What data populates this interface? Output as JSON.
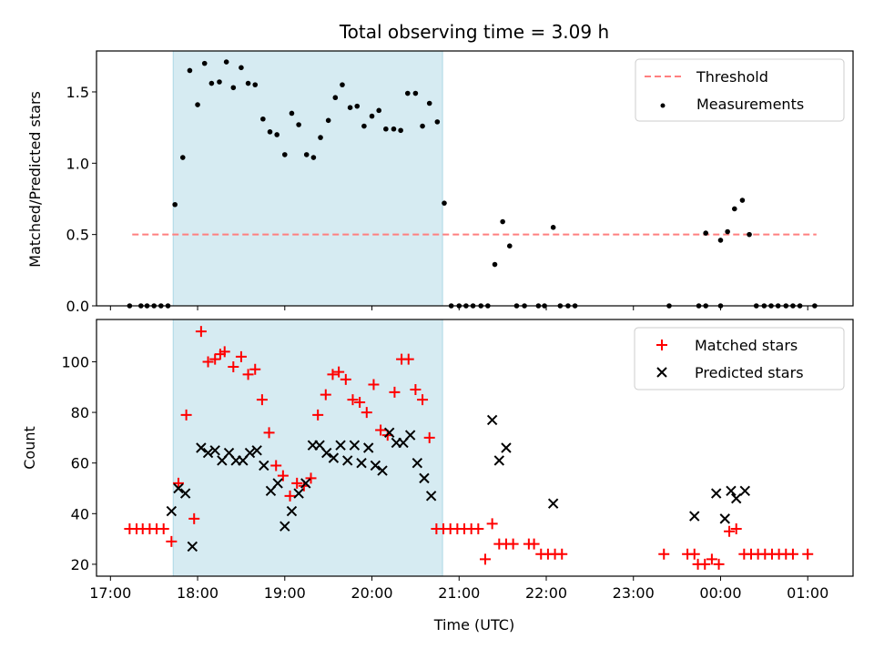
{
  "chart_data": [
    {
      "type": "scatter",
      "title": "Total observing time = 3.09 h",
      "ylabel": "Matched/Predicted stars",
      "xlabel": "",
      "ylim": [
        0,
        1.787
      ],
      "xlim": [
        16.84,
        25.52
      ],
      "yticks": [
        0,
        0.5,
        1.0,
        1.5
      ],
      "ytick_labels": [
        "0.0",
        "0.5",
        "1.0",
        "1.5"
      ],
      "shaded_region": [
        17.72,
        20.81
      ],
      "threshold": {
        "value": 0.5,
        "x_range": [
          17.25,
          25.1
        ],
        "color": "#ff7f7f",
        "label": "Threshold"
      },
      "legend": {
        "position": "top-right",
        "entries": [
          "Threshold",
          "Measurements"
        ]
      },
      "series": [
        {
          "name": "Measurements",
          "color": "#000000",
          "points": [
            [
              17.22,
              0
            ],
            [
              17.35,
              0
            ],
            [
              17.42,
              0
            ],
            [
              17.5,
              0
            ],
            [
              17.58,
              0
            ],
            [
              17.66,
              0
            ],
            [
              17.74,
              0.71
            ],
            [
              17.83,
              1.04
            ],
            [
              17.91,
              1.65
            ],
            [
              18.0,
              1.41
            ],
            [
              18.08,
              1.7
            ],
            [
              18.16,
              1.56
            ],
            [
              18.25,
              1.57
            ],
            [
              18.33,
              1.71
            ],
            [
              18.41,
              1.53
            ],
            [
              18.5,
              1.67
            ],
            [
              18.58,
              1.56
            ],
            [
              18.66,
              1.55
            ],
            [
              18.75,
              1.31
            ],
            [
              18.83,
              1.22
            ],
            [
              18.91,
              1.2
            ],
            [
              19.0,
              1.06
            ],
            [
              19.08,
              1.35
            ],
            [
              19.16,
              1.27
            ],
            [
              19.25,
              1.06
            ],
            [
              19.33,
              1.04
            ],
            [
              19.41,
              1.18
            ],
            [
              19.5,
              1.3
            ],
            [
              19.58,
              1.46
            ],
            [
              19.66,
              1.55
            ],
            [
              19.75,
              1.39
            ],
            [
              19.83,
              1.4
            ],
            [
              19.91,
              1.26
            ],
            [
              20.0,
              1.33
            ],
            [
              20.08,
              1.37
            ],
            [
              20.16,
              1.24
            ],
            [
              20.25,
              1.24
            ],
            [
              20.33,
              1.23
            ],
            [
              20.41,
              1.49
            ],
            [
              20.5,
              1.49
            ],
            [
              20.58,
              1.26
            ],
            [
              20.66,
              1.42
            ],
            [
              20.75,
              1.29
            ],
            [
              20.83,
              0.72
            ],
            [
              20.91,
              0
            ],
            [
              21.0,
              0
            ],
            [
              21.08,
              0
            ],
            [
              21.16,
              0
            ],
            [
              21.25,
              0
            ],
            [
              21.33,
              0
            ],
            [
              21.41,
              0.29
            ],
            [
              21.5,
              0.59
            ],
            [
              21.58,
              0.42
            ],
            [
              21.66,
              0
            ],
            [
              21.75,
              0
            ],
            [
              21.91,
              0
            ],
            [
              21.98,
              0
            ],
            [
              22.08,
              0.55
            ],
            [
              22.16,
              0
            ],
            [
              22.25,
              0
            ],
            [
              22.33,
              0
            ],
            [
              23.41,
              0
            ],
            [
              23.75,
              0
            ],
            [
              23.83,
              0
            ],
            [
              23.83,
              0.51
            ],
            [
              24.0,
              0
            ],
            [
              24.0,
              0.46
            ],
            [
              24.08,
              0.52
            ],
            [
              24.16,
              0.68
            ],
            [
              24.25,
              0.74
            ],
            [
              24.33,
              0.5
            ],
            [
              24.41,
              0
            ],
            [
              24.5,
              0
            ],
            [
              24.58,
              0
            ],
            [
              24.66,
              0
            ],
            [
              24.75,
              0
            ],
            [
              24.83,
              0
            ],
            [
              24.91,
              0
            ],
            [
              25.08,
              0
            ]
          ]
        }
      ]
    },
    {
      "type": "scatter",
      "title": "",
      "ylabel": "Count",
      "xlabel": "Time (UTC)",
      "ylim": [
        15.3,
        116.7
      ],
      "xlim": [
        16.84,
        25.52
      ],
      "yticks": [
        20,
        40,
        60,
        80,
        100
      ],
      "ytick_labels": [
        "20",
        "40",
        "60",
        "80",
        "100"
      ],
      "xticks": [
        17,
        18,
        19,
        20,
        21,
        22,
        23,
        24,
        25
      ],
      "xtick_labels": [
        "17:00",
        "18:00",
        "19:00",
        "20:00",
        "21:00",
        "22:00",
        "23:00",
        "00:00",
        "01:00"
      ],
      "shaded_region": [
        17.72,
        20.81
      ],
      "legend": {
        "position": "top-right",
        "entries": [
          "Matched stars",
          "Predicted stars"
        ]
      },
      "series": [
        {
          "name": "Matched stars",
          "marker": "+",
          "color": "#ff0000",
          "points": [
            [
              17.22,
              34
            ],
            [
              17.3,
              34
            ],
            [
              17.37,
              34
            ],
            [
              17.45,
              34
            ],
            [
              17.53,
              34
            ],
            [
              17.61,
              34
            ],
            [
              17.7,
              29
            ],
            [
              17.78,
              52
            ],
            [
              17.87,
              79
            ],
            [
              17.96,
              38
            ],
            [
              18.04,
              112
            ],
            [
              18.12,
              100
            ],
            [
              18.2,
              101
            ],
            [
              18.26,
              103
            ],
            [
              18.31,
              104
            ],
            [
              18.41,
              98
            ],
            [
              18.5,
              102
            ],
            [
              18.58,
              95
            ],
            [
              18.66,
              97
            ],
            [
              18.74,
              85
            ],
            [
              18.82,
              72
            ],
            [
              18.9,
              59
            ],
            [
              18.98,
              55
            ],
            [
              19.06,
              47
            ],
            [
              19.14,
              52
            ],
            [
              19.22,
              51
            ],
            [
              19.3,
              54
            ],
            [
              19.38,
              79
            ],
            [
              19.47,
              87
            ],
            [
              19.55,
              95
            ],
            [
              19.62,
              96
            ],
            [
              19.7,
              93
            ],
            [
              19.78,
              85
            ],
            [
              19.86,
              84
            ],
            [
              19.94,
              80
            ],
            [
              20.02,
              91
            ],
            [
              20.1,
              73
            ],
            [
              20.18,
              71
            ],
            [
              20.26,
              88
            ],
            [
              20.34,
              101
            ],
            [
              20.42,
              101
            ],
            [
              20.5,
              89
            ],
            [
              20.58,
              85
            ],
            [
              20.66,
              70
            ],
            [
              20.74,
              34
            ],
            [
              20.82,
              34
            ],
            [
              20.9,
              34
            ],
            [
              20.98,
              34
            ],
            [
              21.06,
              34
            ],
            [
              21.14,
              34
            ],
            [
              21.22,
              34
            ],
            [
              21.3,
              22
            ],
            [
              21.38,
              36
            ],
            [
              21.46,
              28
            ],
            [
              21.54,
              28
            ],
            [
              21.62,
              28
            ],
            [
              21.8,
              28
            ],
            [
              21.86,
              28
            ],
            [
              21.94,
              24
            ],
            [
              22.02,
              24
            ],
            [
              22.1,
              24
            ],
            [
              22.18,
              24
            ],
            [
              23.35,
              24
            ],
            [
              23.62,
              24
            ],
            [
              23.7,
              24
            ],
            [
              23.74,
              20
            ],
            [
              23.82,
              20
            ],
            [
              23.9,
              22
            ],
            [
              23.98,
              20
            ],
            [
              24.1,
              33
            ],
            [
              24.18,
              34
            ],
            [
              24.27,
              24
            ],
            [
              24.35,
              24
            ],
            [
              24.43,
              24
            ],
            [
              24.51,
              24
            ],
            [
              24.59,
              24
            ],
            [
              24.67,
              24
            ],
            [
              24.75,
              24
            ],
            [
              24.83,
              24
            ],
            [
              25.0,
              24
            ]
          ]
        },
        {
          "name": "Predicted stars",
          "marker": "x",
          "color": "#000000",
          "points": [
            [
              17.7,
              41
            ],
            [
              17.78,
              50
            ],
            [
              17.86,
              48
            ],
            [
              17.94,
              27
            ],
            [
              18.04,
              66
            ],
            [
              18.12,
              64
            ],
            [
              18.2,
              65
            ],
            [
              18.28,
              61
            ],
            [
              18.36,
              64
            ],
            [
              18.44,
              61
            ],
            [
              18.52,
              61
            ],
            [
              18.6,
              64
            ],
            [
              18.68,
              65
            ],
            [
              18.76,
              59
            ],
            [
              18.84,
              49
            ],
            [
              18.92,
              52
            ],
            [
              19.0,
              35
            ],
            [
              19.08,
              41
            ],
            [
              19.16,
              48
            ],
            [
              19.24,
              52
            ],
            [
              19.32,
              67
            ],
            [
              19.4,
              67
            ],
            [
              19.48,
              64
            ],
            [
              19.56,
              62
            ],
            [
              19.64,
              67
            ],
            [
              19.72,
              61
            ],
            [
              19.8,
              67
            ],
            [
              19.88,
              60
            ],
            [
              19.96,
              66
            ],
            [
              20.04,
              59
            ],
            [
              20.12,
              57
            ],
            [
              20.2,
              72
            ],
            [
              20.28,
              68
            ],
            [
              20.36,
              68
            ],
            [
              20.44,
              71
            ],
            [
              20.52,
              60
            ],
            [
              20.6,
              54
            ],
            [
              20.68,
              47
            ],
            [
              21.38,
              77
            ],
            [
              21.46,
              61
            ],
            [
              21.54,
              66
            ],
            [
              22.08,
              44
            ],
            [
              23.7,
              39
            ],
            [
              23.95,
              48
            ],
            [
              24.05,
              38
            ],
            [
              24.12,
              49
            ],
            [
              24.18,
              46
            ],
            [
              24.28,
              49
            ]
          ]
        }
      ]
    }
  ]
}
